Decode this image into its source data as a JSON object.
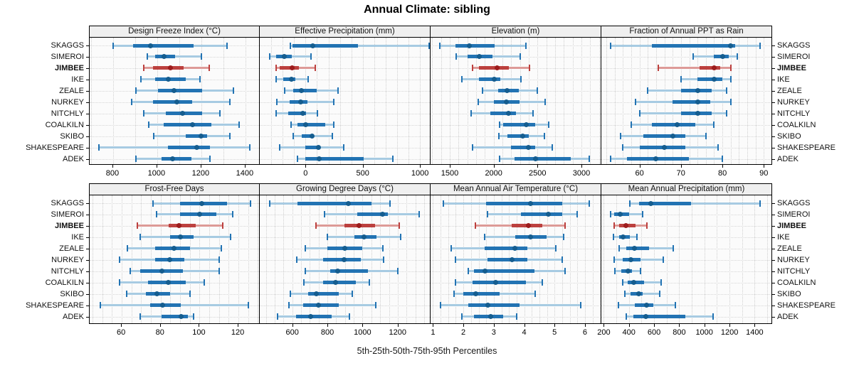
{
  "title": "Annual Climate: sibling",
  "caption": "5th-25th-50th-75th-95th Percentiles",
  "sites": [
    "SKAGGS",
    "SIMEROI",
    "JIMBEE",
    "IKE",
    "ZEALE",
    "NURKEY",
    "NITCHLY",
    "COALKILN",
    "SKIBO",
    "SHAKESPEARE",
    "ADEK"
  ],
  "highlight_site": "JIMBEE",
  "colors": {
    "blue_main": "#2273b3",
    "blue_light": "#a7cbe2",
    "blue_dot": "#155d8f",
    "red_main": "#bc403e",
    "red_light": "#dd9a97",
    "red_dot": "#9d1d1d",
    "strip_bg": "#efefef",
    "panel_bg": "#fbfbfb",
    "grid": "#cfcfcf",
    "border": "#000000"
  },
  "chart_data": [
    {
      "type": "scatter",
      "title": "Design Freeze Index (°C)",
      "row": 0,
      "col": 0,
      "xlim": [
        694,
        1468
      ],
      "ticks": [
        800,
        1000,
        1200,
        1400
      ],
      "tick_labels": [
        "800",
        "1000",
        "1200",
        "1400"
      ],
      "grid": {
        "start": 700,
        "end": 1400,
        "step": 100
      },
      "series": [
        {
          "site": "SKAGGS",
          "p": [
            800,
            890,
            970,
            1165,
            1315
          ]
        },
        {
          "site": "SIMEROI",
          "p": [
            955,
            990,
            1030,
            1080,
            1200
          ]
        },
        {
          "site": "JIMBEE",
          "p": [
            940,
            980,
            1060,
            1120,
            1235
          ]
        },
        {
          "site": "IKE",
          "p": [
            925,
            990,
            1050,
            1130,
            1195
          ]
        },
        {
          "site": "ZEALE",
          "p": [
            905,
            1005,
            1075,
            1205,
            1345
          ]
        },
        {
          "site": "NURKEY",
          "p": [
            885,
            980,
            1090,
            1160,
            1330
          ]
        },
        {
          "site": "NITCHLY",
          "p": [
            940,
            1040,
            1115,
            1205,
            1285
          ]
        },
        {
          "site": "COALKILN",
          "p": [
            960,
            1030,
            1160,
            1245,
            1370
          ]
        },
        {
          "site": "SKIBO",
          "p": [
            985,
            1130,
            1200,
            1225,
            1330
          ]
        },
        {
          "site": "SHAKESPEARE",
          "p": [
            735,
            1050,
            1180,
            1240,
            1420
          ]
        },
        {
          "site": "ADEK",
          "p": [
            905,
            1020,
            1070,
            1155,
            1240
          ]
        }
      ]
    },
    {
      "type": "scatter",
      "title": "Effective Precipitation (mm)",
      "row": 0,
      "col": 1,
      "xlim": [
        -400,
        1093
      ],
      "ticks": [
        0,
        500,
        1000
      ],
      "tick_labels": [
        "0",
        "500",
        "1000"
      ],
      "grid": {
        "start": -300,
        "end": 1000,
        "step": 100
      },
      "series": [
        {
          "site": "SKAGGS",
          "p": [
            -130,
            -115,
            65,
            460,
            1080
          ]
        },
        {
          "site": "SIMEROI",
          "p": [
            -315,
            -255,
            -185,
            -120,
            50
          ]
        },
        {
          "site": "JIMBEE",
          "p": [
            -260,
            -225,
            -115,
            -60,
            85
          ]
        },
        {
          "site": "IKE",
          "p": [
            -255,
            -195,
            -125,
            -90,
            20
          ]
        },
        {
          "site": "ZEALE",
          "p": [
            -185,
            -110,
            -35,
            100,
            285
          ]
        },
        {
          "site": "NURKEY",
          "p": [
            -250,
            -140,
            -40,
            15,
            245
          ]
        },
        {
          "site": "NITCHLY",
          "p": [
            -255,
            -150,
            -25,
            5,
            105
          ]
        },
        {
          "site": "COALKILN",
          "p": [
            -125,
            -70,
            0,
            170,
            245
          ]
        },
        {
          "site": "SKIBO",
          "p": [
            -110,
            -35,
            55,
            75,
            235
          ]
        },
        {
          "site": "SHAKESPEARE",
          "p": [
            -225,
            0,
            110,
            120,
            335
          ]
        },
        {
          "site": "ADEK",
          "p": [
            -70,
            0,
            120,
            510,
            760
          ]
        }
      ]
    },
    {
      "type": "scatter",
      "title": "Elevation (m)",
      "row": 0,
      "col": 2,
      "xlim": [
        1281,
        3227
      ],
      "ticks": [
        1500,
        2000,
        2500,
        3000
      ],
      "tick_labels": [
        "1500",
        "2000",
        "2500",
        "3000"
      ],
      "grid": {
        "start": 1300,
        "end": 3200,
        "step": 100
      },
      "series": [
        {
          "site": "SKAGGS",
          "p": [
            1390,
            1565,
            1725,
            2010,
            2370
          ]
        },
        {
          "site": "SIMEROI",
          "p": [
            1575,
            1700,
            1840,
            1990,
            2300
          ]
        },
        {
          "site": "JIMBEE",
          "p": [
            1755,
            1830,
            2040,
            2170,
            2410
          ]
        },
        {
          "site": "IKE",
          "p": [
            1640,
            1830,
            2010,
            2080,
            2310
          ]
        },
        {
          "site": "ZEALE",
          "p": [
            1870,
            2050,
            2150,
            2285,
            2495
          ]
        },
        {
          "site": "NURKEY",
          "p": [
            1820,
            2005,
            2145,
            2295,
            2585
          ]
        },
        {
          "site": "NITCHLY",
          "p": [
            1745,
            1960,
            2165,
            2255,
            2450
          ]
        },
        {
          "site": "COALKILN",
          "p": [
            2065,
            2105,
            2370,
            2470,
            2630
          ]
        },
        {
          "site": "SKIBO",
          "p": [
            2055,
            2160,
            2330,
            2400,
            2580
          ]
        },
        {
          "site": "SHAKESPEARE",
          "p": [
            1755,
            2200,
            2395,
            2470,
            2670
          ]
        },
        {
          "site": "ADEK",
          "p": [
            2065,
            2235,
            2480,
            2875,
            3090
          ]
        }
      ]
    },
    {
      "type": "scatter",
      "title": "Fraction of Annual PPT as Rain",
      "row": 0,
      "col": 3,
      "xlim": [
        50.8,
        92
      ],
      "ticks": [
        60,
        70,
        80,
        90
      ],
      "tick_labels": [
        "60",
        "70",
        "80",
        "90"
      ],
      "grid": {
        "start": 52,
        "end": 90,
        "step": 2
      },
      "series": [
        {
          "site": "SKAGGS",
          "p": [
            53,
            63,
            82,
            83,
            89
          ]
        },
        {
          "site": "SIMEROI",
          "p": [
            73,
            78,
            80,
            81.5,
            83.5
          ]
        },
        {
          "site": "JIMBEE",
          "p": [
            64.5,
            74.5,
            78,
            79.5,
            82
          ]
        },
        {
          "site": "IKE",
          "p": [
            70,
            74,
            78,
            80,
            82
          ]
        },
        {
          "site": "ZEALE",
          "p": [
            62,
            70,
            74,
            77.5,
            81
          ]
        },
        {
          "site": "NURKEY",
          "p": [
            59,
            68,
            74,
            77,
            82
          ]
        },
        {
          "site": "NITCHLY",
          "p": [
            60,
            70,
            74,
            77.5,
            81
          ]
        },
        {
          "site": "COALKILN",
          "p": [
            58,
            63,
            69,
            73.5,
            78
          ]
        },
        {
          "site": "SKIBO",
          "p": [
            55.5,
            61,
            68,
            71,
            76
          ]
        },
        {
          "site": "SHAKESPEARE",
          "p": [
            56,
            60,
            66,
            71,
            79
          ]
        },
        {
          "site": "ADEK",
          "p": [
            53,
            57,
            64,
            72,
            80
          ]
        }
      ]
    },
    {
      "type": "scatter",
      "title": "Frost-Free Days",
      "row": 1,
      "col": 0,
      "xlim": [
        43.5,
        131.3
      ],
      "ticks": [
        60,
        80,
        100,
        120
      ],
      "tick_labels": [
        "60",
        "80",
        "100",
        "120"
      ],
      "grid": {
        "start": 45,
        "end": 130,
        "step": 5
      },
      "series": [
        {
          "site": "SKAGGS",
          "p": [
            76,
            90,
            101,
            114,
            126
          ]
        },
        {
          "site": "SIMEROI",
          "p": [
            78,
            90,
            100,
            108.5,
            117
          ]
        },
        {
          "site": "JIMBEE",
          "p": [
            68,
            84,
            89.5,
            98,
            112
          ]
        },
        {
          "site": "IKE",
          "p": [
            69.5,
            85,
            90,
            97,
            116
          ]
        },
        {
          "site": "ZEALE",
          "p": [
            63,
            77,
            87,
            95,
            111
          ]
        },
        {
          "site": "NURKEY",
          "p": [
            59,
            77,
            84.5,
            92,
            110
          ]
        },
        {
          "site": "NITCHLY",
          "p": [
            64.5,
            69.5,
            80.5,
            91.5,
            110
          ]
        },
        {
          "site": "COALKILN",
          "p": [
            59,
            73.5,
            84,
            93,
            102.5
          ]
        },
        {
          "site": "SKIBO",
          "p": [
            62.5,
            72.5,
            78,
            85,
            95
          ]
        },
        {
          "site": "SHAKESPEARE",
          "p": [
            49,
            74.5,
            81,
            90.5,
            125
          ]
        },
        {
          "site": "ADEK",
          "p": [
            69.5,
            80.5,
            90.5,
            94,
            97
          ]
        }
      ]
    },
    {
      "type": "scatter",
      "title": "Growing Degree Days (°C)",
      "row": 1,
      "col": 1,
      "xlim": [
        415,
        1387
      ],
      "ticks": [
        600,
        800,
        1000,
        1200
      ],
      "tick_labels": [
        "600",
        "800",
        "1000",
        "1200"
      ],
      "grid": {
        "start": 450,
        "end": 1350,
        "step": 50
      },
      "series": [
        {
          "site": "SKAGGS",
          "p": [
            470,
            630,
            920,
            1050,
            1155
          ]
        },
        {
          "site": "SIMEROI",
          "p": [
            785,
            970,
            1115,
            1145,
            1320
          ]
        },
        {
          "site": "JIMBEE",
          "p": [
            735,
            895,
            980,
            1070,
            1210
          ]
        },
        {
          "site": "IKE",
          "p": [
            800,
            955,
            1010,
            1080,
            1215
          ]
        },
        {
          "site": "ZEALE",
          "p": [
            675,
            800,
            900,
            1000,
            1115
          ]
        },
        {
          "site": "NURKEY",
          "p": [
            625,
            775,
            895,
            990,
            1120
          ]
        },
        {
          "site": "NITCHLY",
          "p": [
            675,
            815,
            860,
            1030,
            1200
          ]
        },
        {
          "site": "COALKILN",
          "p": [
            665,
            775,
            845,
            960,
            1040
          ]
        },
        {
          "site": "SKIBO",
          "p": [
            590,
            690,
            735,
            865,
            940
          ]
        },
        {
          "site": "SHAKESPEARE",
          "p": [
            580,
            660,
            750,
            865,
            1075
          ]
        },
        {
          "site": "ADEK",
          "p": [
            515,
            620,
            705,
            825,
            925
          ]
        }
      ]
    },
    {
      "type": "scatter",
      "title": "Mean Annual Air Temperature (°C)",
      "row": 1,
      "col": 2,
      "xlim": [
        0.92,
        6.54
      ],
      "ticks": [
        1,
        2,
        3,
        4,
        5,
        6
      ],
      "tick_labels": [
        "1",
        "2",
        "3",
        "4",
        "5",
        "6"
      ],
      "grid": {
        "start": 1,
        "end": 6.5,
        "step": 0.25
      },
      "series": [
        {
          "site": "SKAGGS",
          "p": [
            1.35,
            2.75,
            4.2,
            5.25,
            6.15
          ]
        },
        {
          "site": "SIMEROI",
          "p": [
            2.8,
            3.9,
            4.8,
            5.25,
            5.75
          ]
        },
        {
          "site": "JIMBEE",
          "p": [
            2.4,
            3.6,
            4.15,
            4.6,
            5.35
          ]
        },
        {
          "site": "IKE",
          "p": [
            2.7,
            3.7,
            4.2,
            4.75,
            5.3
          ]
        },
        {
          "site": "ZEALE",
          "p": [
            1.6,
            2.7,
            3.7,
            4.1,
            5.05
          ]
        },
        {
          "site": "NURKEY",
          "p": [
            1.75,
            2.8,
            3.6,
            4.1,
            5.25
          ]
        },
        {
          "site": "NITCHLY",
          "p": [
            2.15,
            2.35,
            2.7,
            4.35,
            5.35
          ]
        },
        {
          "site": "COALKILN",
          "p": [
            1.75,
            2.3,
            3.05,
            4.05,
            4.6
          ]
        },
        {
          "site": "SKIBO",
          "p": [
            1.7,
            2.0,
            2.4,
            3.2,
            4.35
          ]
        },
        {
          "site": "SHAKESPEARE",
          "p": [
            1.25,
            2.15,
            2.8,
            3.85,
            5.85
          ]
        },
        {
          "site": "ADEK",
          "p": [
            1.95,
            2.35,
            2.9,
            3.3,
            3.75
          ]
        }
      ]
    },
    {
      "type": "scatter",
      "title": "Mean Annual Precipitation (mm)",
      "row": 1,
      "col": 3,
      "xlim": [
        181,
        1539
      ],
      "ticks": [
        200,
        400,
        600,
        800,
        1000,
        1200,
        1400
      ],
      "tick_labels": [
        "200",
        "400",
        "600",
        "800",
        "1000",
        "1200",
        "1400"
      ],
      "grid": {
        "start": 200,
        "end": 1500,
        "step": 100
      },
      "series": [
        {
          "site": "SKAGGS",
          "p": [
            405,
            480,
            575,
            895,
            1440
          ]
        },
        {
          "site": "SIMEROI",
          "p": [
            255,
            285,
            330,
            400,
            510
          ]
        },
        {
          "site": "JIMBEE",
          "p": [
            280,
            325,
            375,
            455,
            545
          ]
        },
        {
          "site": "IKE",
          "p": [
            275,
            325,
            355,
            410,
            465
          ]
        },
        {
          "site": "ZEALE",
          "p": [
            320,
            380,
            445,
            560,
            750
          ]
        },
        {
          "site": "NURKEY",
          "p": [
            280,
            350,
            415,
            490,
            675
          ]
        },
        {
          "site": "NITCHLY",
          "p": [
            290,
            340,
            395,
            425,
            490
          ]
        },
        {
          "site": "COALKILN",
          "p": [
            350,
            390,
            440,
            520,
            655
          ]
        },
        {
          "site": "SKIBO",
          "p": [
            365,
            410,
            475,
            510,
            645
          ]
        },
        {
          "site": "SHAKESPEARE",
          "p": [
            315,
            445,
            540,
            595,
            770
          ]
        },
        {
          "site": "ADEK",
          "p": [
            380,
            435,
            535,
            850,
            1070
          ]
        }
      ]
    }
  ]
}
